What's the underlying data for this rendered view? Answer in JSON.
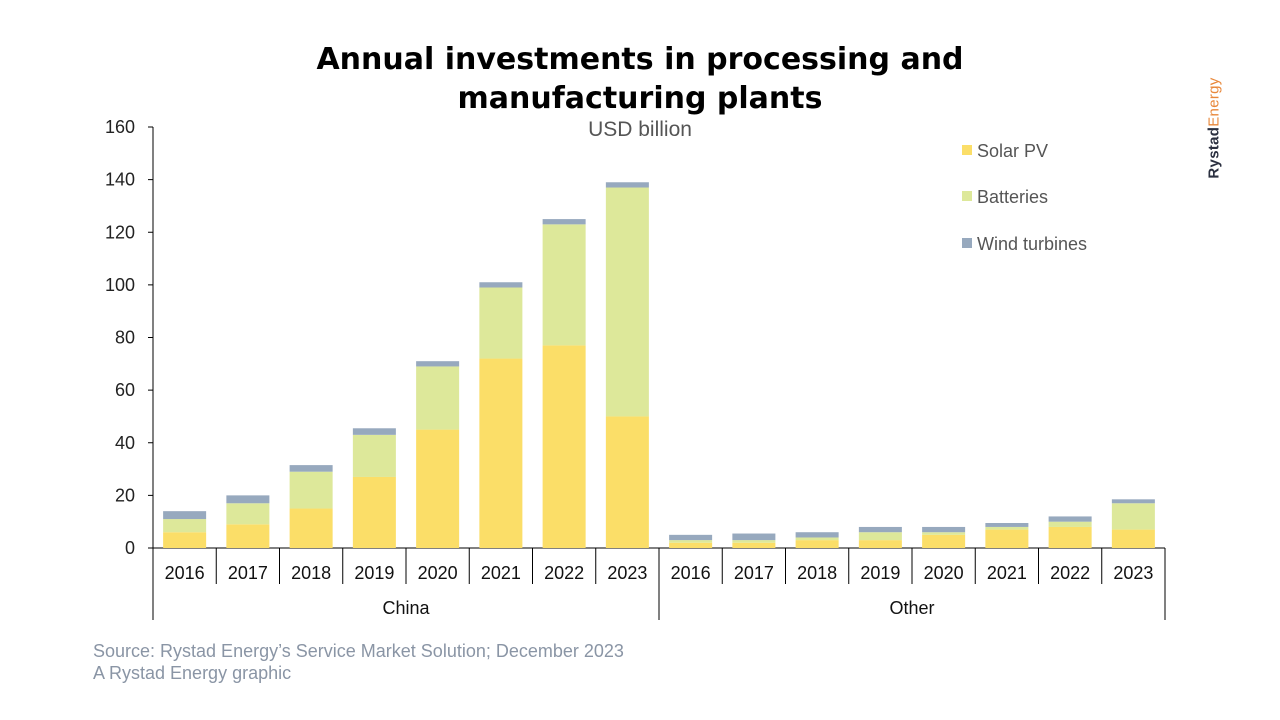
{
  "title_line1": "Annual investments in processing and",
  "title_line2": "manufacturing plants",
  "subtitle": "USD billion",
  "brand": {
    "part1": "Rystad",
    "part2": "Energy"
  },
  "source_line1": "Source: Rystad Energy’s Service Market Solution; December 2023",
  "source_line2": "A Rystad Energy graphic",
  "chart_data": {
    "type": "bar",
    "stacked": true,
    "title": "Annual investments in processing and manufacturing plants",
    "subtitle": "USD billion",
    "ylim": [
      0,
      160
    ],
    "yticks": [
      0,
      20,
      40,
      60,
      80,
      100,
      120,
      140,
      160
    ],
    "groups": [
      {
        "name": "China",
        "categories": [
          "2016",
          "2017",
          "2018",
          "2019",
          "2020",
          "2021",
          "2022",
          "2023"
        ]
      },
      {
        "name": "Other",
        "categories": [
          "2016",
          "2017",
          "2018",
          "2019",
          "2020",
          "2021",
          "2022",
          "2023"
        ]
      }
    ],
    "series": [
      {
        "name": "Solar PV",
        "color": "#fbde68",
        "values": [
          6,
          9,
          15,
          27,
          45,
          72,
          77,
          50,
          2,
          2,
          3,
          3,
          5,
          7,
          8,
          7
        ]
      },
      {
        "name": "Batteries",
        "color": "#dde89a",
        "values": [
          5,
          8,
          14,
          16,
          24,
          27,
          46,
          87,
          1,
          1,
          1,
          3,
          1,
          1,
          2,
          10
        ]
      },
      {
        "name": "Wind turbines",
        "color": "#97a9be",
        "values": [
          3,
          3,
          2.5,
          2.5,
          2,
          2,
          2,
          2,
          2,
          2.5,
          2,
          2,
          2,
          1.5,
          2,
          1.5
        ]
      }
    ],
    "legend_position": "top-right",
    "grid": false
  }
}
